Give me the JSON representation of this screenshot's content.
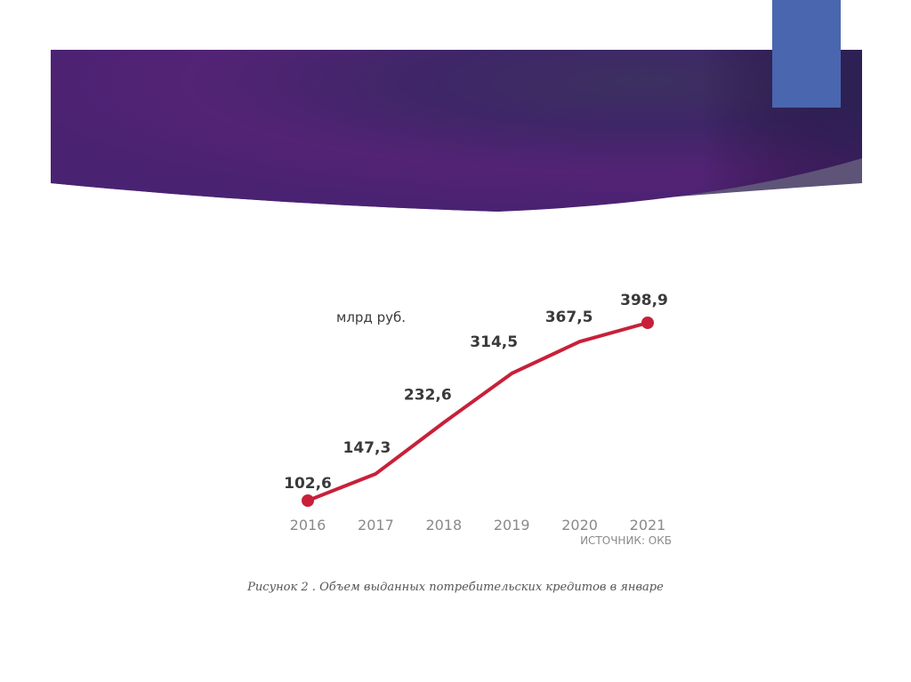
{
  "caption": "Рисунок 2 . Объем выданных потребительских кредитов в январе",
  "colors": {
    "line": "#c8203a",
    "accent": "#4a66ae",
    "banner_dark": "#2a2050",
    "banner_purple": "#5a2479"
  },
  "chart_data": {
    "type": "line",
    "title": "",
    "ylabel": "млрд руб.",
    "xlabel": "",
    "source": "ИСТОЧНИК: ОКБ",
    "categories": [
      "2016",
      "2017",
      "2018",
      "2019",
      "2020",
      "2021"
    ],
    "values": [
      102.6,
      147.3,
      232.6,
      314.5,
      367.5,
      398.9
    ],
    "value_labels": [
      "102,6",
      "147,3",
      "232,6",
      "314,5",
      "367,5",
      "398,9"
    ],
    "markers_on": [
      "2016",
      "2021"
    ],
    "grid": false,
    "ylim": [
      102.6,
      398.9
    ]
  }
}
